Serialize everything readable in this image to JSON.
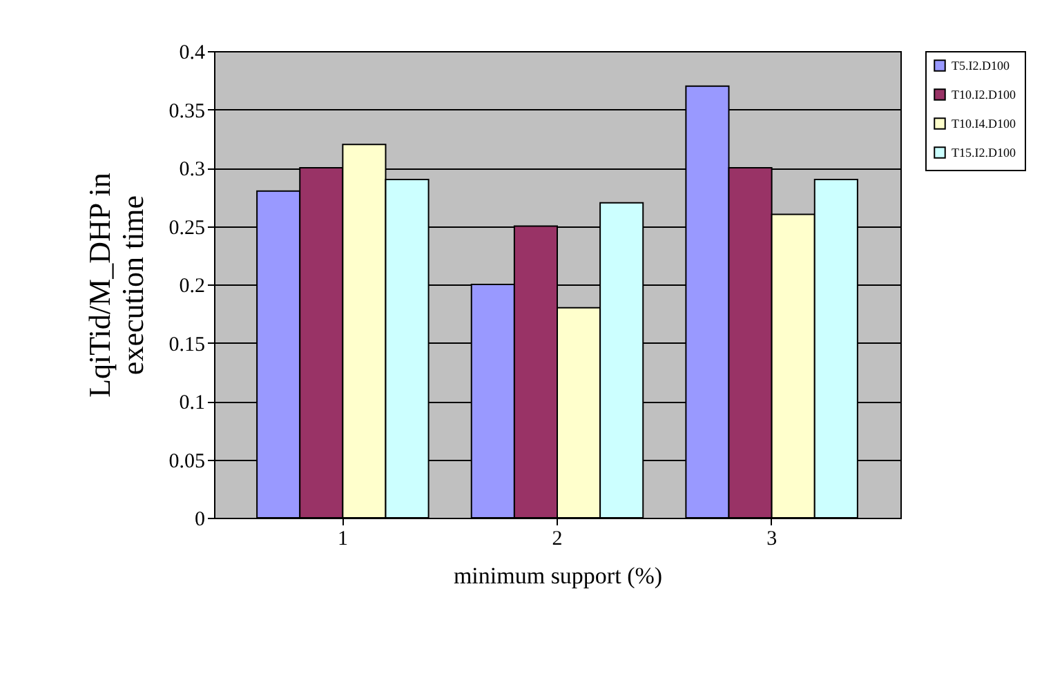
{
  "chart_data": {
    "type": "bar",
    "xlabel": "minimum support (%)",
    "ylabel": "LqiTid/M_DHP in execution time",
    "categories": [
      "1",
      "2",
      "3"
    ],
    "series": [
      {
        "name": "T5.I2.D100",
        "color": "#9999ff",
        "values": [
          0.28,
          0.2,
          0.37
        ]
      },
      {
        "name": "T10.I2.D100",
        "color": "#993366",
        "values": [
          0.3,
          0.25,
          0.3
        ]
      },
      {
        "name": "T10.I4.D100",
        "color": "#ffffcc",
        "values": [
          0.32,
          0.18,
          0.26
        ]
      },
      {
        "name": "T15.I2.D100",
        "color": "#ccffff",
        "values": [
          0.29,
          0.27,
          0.29
        ]
      }
    ],
    "ylim": [
      0,
      0.4
    ],
    "yticks": [
      0,
      0.05,
      0.1,
      0.15,
      0.2,
      0.25,
      0.3,
      0.35,
      0.4
    ],
    "grid": "y",
    "legend": "right"
  }
}
